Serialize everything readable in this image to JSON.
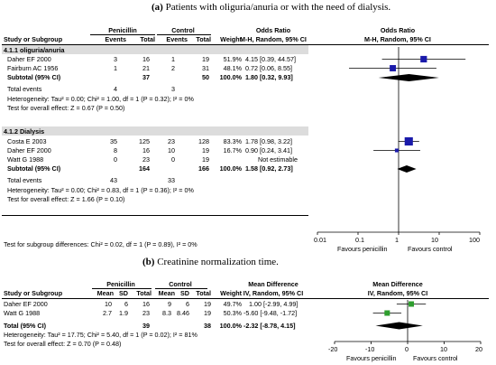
{
  "figure_a": {
    "caption_label": "(a)",
    "caption_text": "Patients with oliguria/anuria or with the need of dialysis.",
    "header": {
      "group1": "Penicillin",
      "group2": "Control",
      "effect": "Odds Ratio",
      "effect_plot": "Odds Ratio",
      "study": "Study or Subgroup",
      "events1": "Events",
      "total1": "Total",
      "events2": "Events",
      "total2": "Total",
      "weight": "Weight",
      "method": "M-H, Random, 95% CI",
      "method_plot": "M-H, Random, 95% CI"
    },
    "subgroups": [
      {
        "title": "4.1.1 oliguria/anuria",
        "studies": [
          {
            "name": "Daher EF 2000",
            "e1": "3",
            "t1": "16",
            "e2": "1",
            "t2": "19",
            "weight": "51.9%",
            "ci": "4.15 [0.39, 44.57]"
          },
          {
            "name": "Fairburn AC 1956",
            "e1": "1",
            "t1": "21",
            "e2": "2",
            "t2": "31",
            "weight": "48.1%",
            "ci": "0.72 [0.06, 8.55]"
          }
        ],
        "subtotal": {
          "label": "Subtotal (95% CI)",
          "t1": "37",
          "t2": "50",
          "weight": "100.0%",
          "ci": "1.80 [0.32, 9.93]"
        },
        "total_events": {
          "label": "Total events",
          "e1": "4",
          "e2": "3"
        },
        "heterogeneity": "Heterogeneity: Tau² = 0.00; Chi² = 1.00, df = 1 (P = 0.32); I² = 0%",
        "overall": "Test for overall effect: Z = 0.67 (P = 0.50)"
      },
      {
        "title": "4.1.2 Dialysis",
        "studies": [
          {
            "name": "Costa E 2003",
            "e1": "35",
            "t1": "125",
            "e2": "23",
            "t2": "128",
            "weight": "83.3%",
            "ci": "1.78 [0.98, 3.22]"
          },
          {
            "name": "Daher EF 2000",
            "e1": "8",
            "t1": "16",
            "e2": "10",
            "t2": "19",
            "weight": "16.7%",
            "ci": "0.90 [0.24, 3.41]"
          },
          {
            "name": "Watt G 1988",
            "e1": "0",
            "t1": "23",
            "e2": "0",
            "t2": "19",
            "weight": "",
            "ci": "Not estimable"
          }
        ],
        "subtotal": {
          "label": "Subtotal (95% CI)",
          "t1": "164",
          "t2": "166",
          "weight": "100.0%",
          "ci": "1.58 [0.92, 2.73]"
        },
        "total_events": {
          "label": "Total events",
          "e1": "43",
          "e2": "33"
        },
        "heterogeneity": "Heterogeneity: Tau² = 0.00; Chi² = 0.83, df = 1 (P = 0.36); I² = 0%",
        "overall": "Test for overall effect: Z = 1.66 (P = 0.10)"
      }
    ],
    "subgroup_test": "Test for subgroup differences: Chi² = 0.02, df = 1 (P = 0.89), I² = 0%",
    "axis_ticks": [
      "0.01",
      "0.1",
      "1",
      "10",
      "100"
    ],
    "favours_left": "Favours penicillin",
    "favours_right": "Favours control"
  },
  "figure_b": {
    "caption_label": "(b)",
    "caption_text": "Creatinine normalization time.",
    "header": {
      "group1": "Penicillin",
      "group2": "Control",
      "effect": "Mean Difference",
      "effect_plot": "Mean Difference",
      "study": "Study or Subgroup",
      "mean1": "Mean",
      "sd1": "SD",
      "total1": "Total",
      "mean2": "Mean",
      "sd2": "SD",
      "total2": "Total",
      "weight": "Weight",
      "method": "IV, Random, 95% CI",
      "method_plot": "IV, Random, 95% CI"
    },
    "studies": [
      {
        "name": "Daher EF 2000",
        "m1": "10",
        "sd1": "6",
        "t1": "16",
        "m2": "9",
        "sd2": "6",
        "t2": "19",
        "weight": "49.7%",
        "ci": "1.00 [-2.99, 4.99]"
      },
      {
        "name": "Watt G 1988",
        "m1": "2.7",
        "sd1": "1.9",
        "t1": "23",
        "m2": "8.3",
        "sd2": "8.46",
        "t2": "19",
        "weight": "50.3%",
        "ci": "-5.60 [-9.48, -1.72]"
      }
    ],
    "total": {
      "label": "Total (95% CI)",
      "t1": "39",
      "t2": "38",
      "weight": "100.0%",
      "ci": "-2.32 [-8.78, 4.15]"
    },
    "heterogeneity": "Heterogeneity: Tau² = 17.75; Chi² = 5.40, df = 1 (P = 0.02); I² = 81%",
    "overall": "Test for overall effect: Z = 0.70 (P = 0.48)",
    "axis_ticks": [
      "-20",
      "-10",
      "0",
      "10",
      "20"
    ],
    "favours_left": "Favours penicillin",
    "favours_right": "Favours control"
  },
  "colors": {
    "square_a": "#1a1aaa",
    "square_b": "#2e9e2e",
    "diamond": "#000000",
    "section_bg": "#dcdcdc"
  },
  "chart_data": [
    {
      "type": "forest",
      "scale": "log",
      "xlim": [
        0.01,
        100
      ],
      "series": [
        {
          "name": "4.1.1 oliguria/anuria",
          "studies": [
            {
              "label": "Daher EF 2000",
              "est": 4.15,
              "lo": 0.39,
              "hi": 44.57,
              "weight": 51.9
            },
            {
              "label": "Fairburn AC 1956",
              "est": 0.72,
              "lo": 0.06,
              "hi": 8.55,
              "weight": 48.1
            }
          ],
          "pooled": {
            "est": 1.8,
            "lo": 0.32,
            "hi": 9.93
          }
        },
        {
          "name": "4.1.2 Dialysis",
          "studies": [
            {
              "label": "Costa E 2003",
              "est": 1.78,
              "lo": 0.98,
              "hi": 3.22,
              "weight": 83.3
            },
            {
              "label": "Daher EF 2000",
              "est": 0.9,
              "lo": 0.24,
              "hi": 3.41,
              "weight": 16.7
            }
          ],
          "pooled": {
            "est": 1.58,
            "lo": 0.92,
            "hi": 2.73
          }
        }
      ]
    },
    {
      "type": "forest",
      "scale": "linear",
      "xlim": [
        -20,
        20
      ],
      "series": [
        {
          "name": "",
          "studies": [
            {
              "label": "Daher EF 2000",
              "est": 1.0,
              "lo": -2.99,
              "hi": 4.99,
              "weight": 49.7
            },
            {
              "label": "Watt G 1988",
              "est": -5.6,
              "lo": -9.48,
              "hi": -1.72,
              "weight": 50.3
            }
          ],
          "pooled": {
            "est": -2.32,
            "lo": -8.78,
            "hi": 4.15
          }
        }
      ]
    }
  ]
}
